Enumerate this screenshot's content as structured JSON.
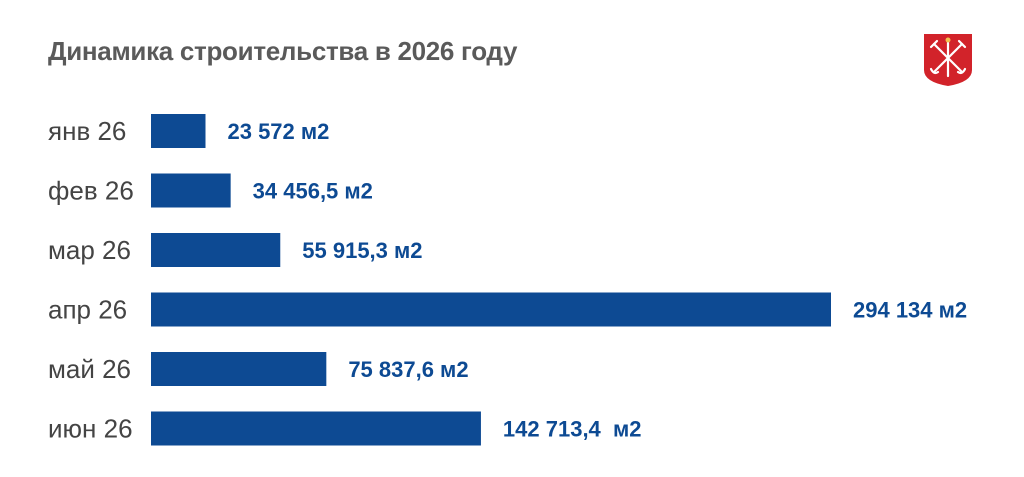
{
  "chart_data": {
    "type": "bar",
    "orientation": "horizontal",
    "title": "Динамика строительства в 2026 году",
    "categories": [
      "янв 26",
      "фев 26",
      "мар 26",
      "апр 26",
      "май 26",
      "июн 26"
    ],
    "values": [
      23572,
      34456.5,
      55915.3,
      294134,
      75837.6,
      142713.4
    ],
    "value_labels": [
      "23 572 м2",
      "34 456,5 м2",
      "55 915,3 м2",
      "294 134 м2",
      "75 837,6 м2",
      "142 713,4  м2"
    ],
    "xlim": [
      0,
      294134
    ],
    "grid": false,
    "legend": "none"
  },
  "colors": {
    "bar": "#0d4a93",
    "value_text": "#0d4a93",
    "title": "#5a5a5a",
    "emblem_red": "#d2232a"
  },
  "icons": {
    "emblem": "saint-petersburg-coat-of-arms-icon"
  }
}
